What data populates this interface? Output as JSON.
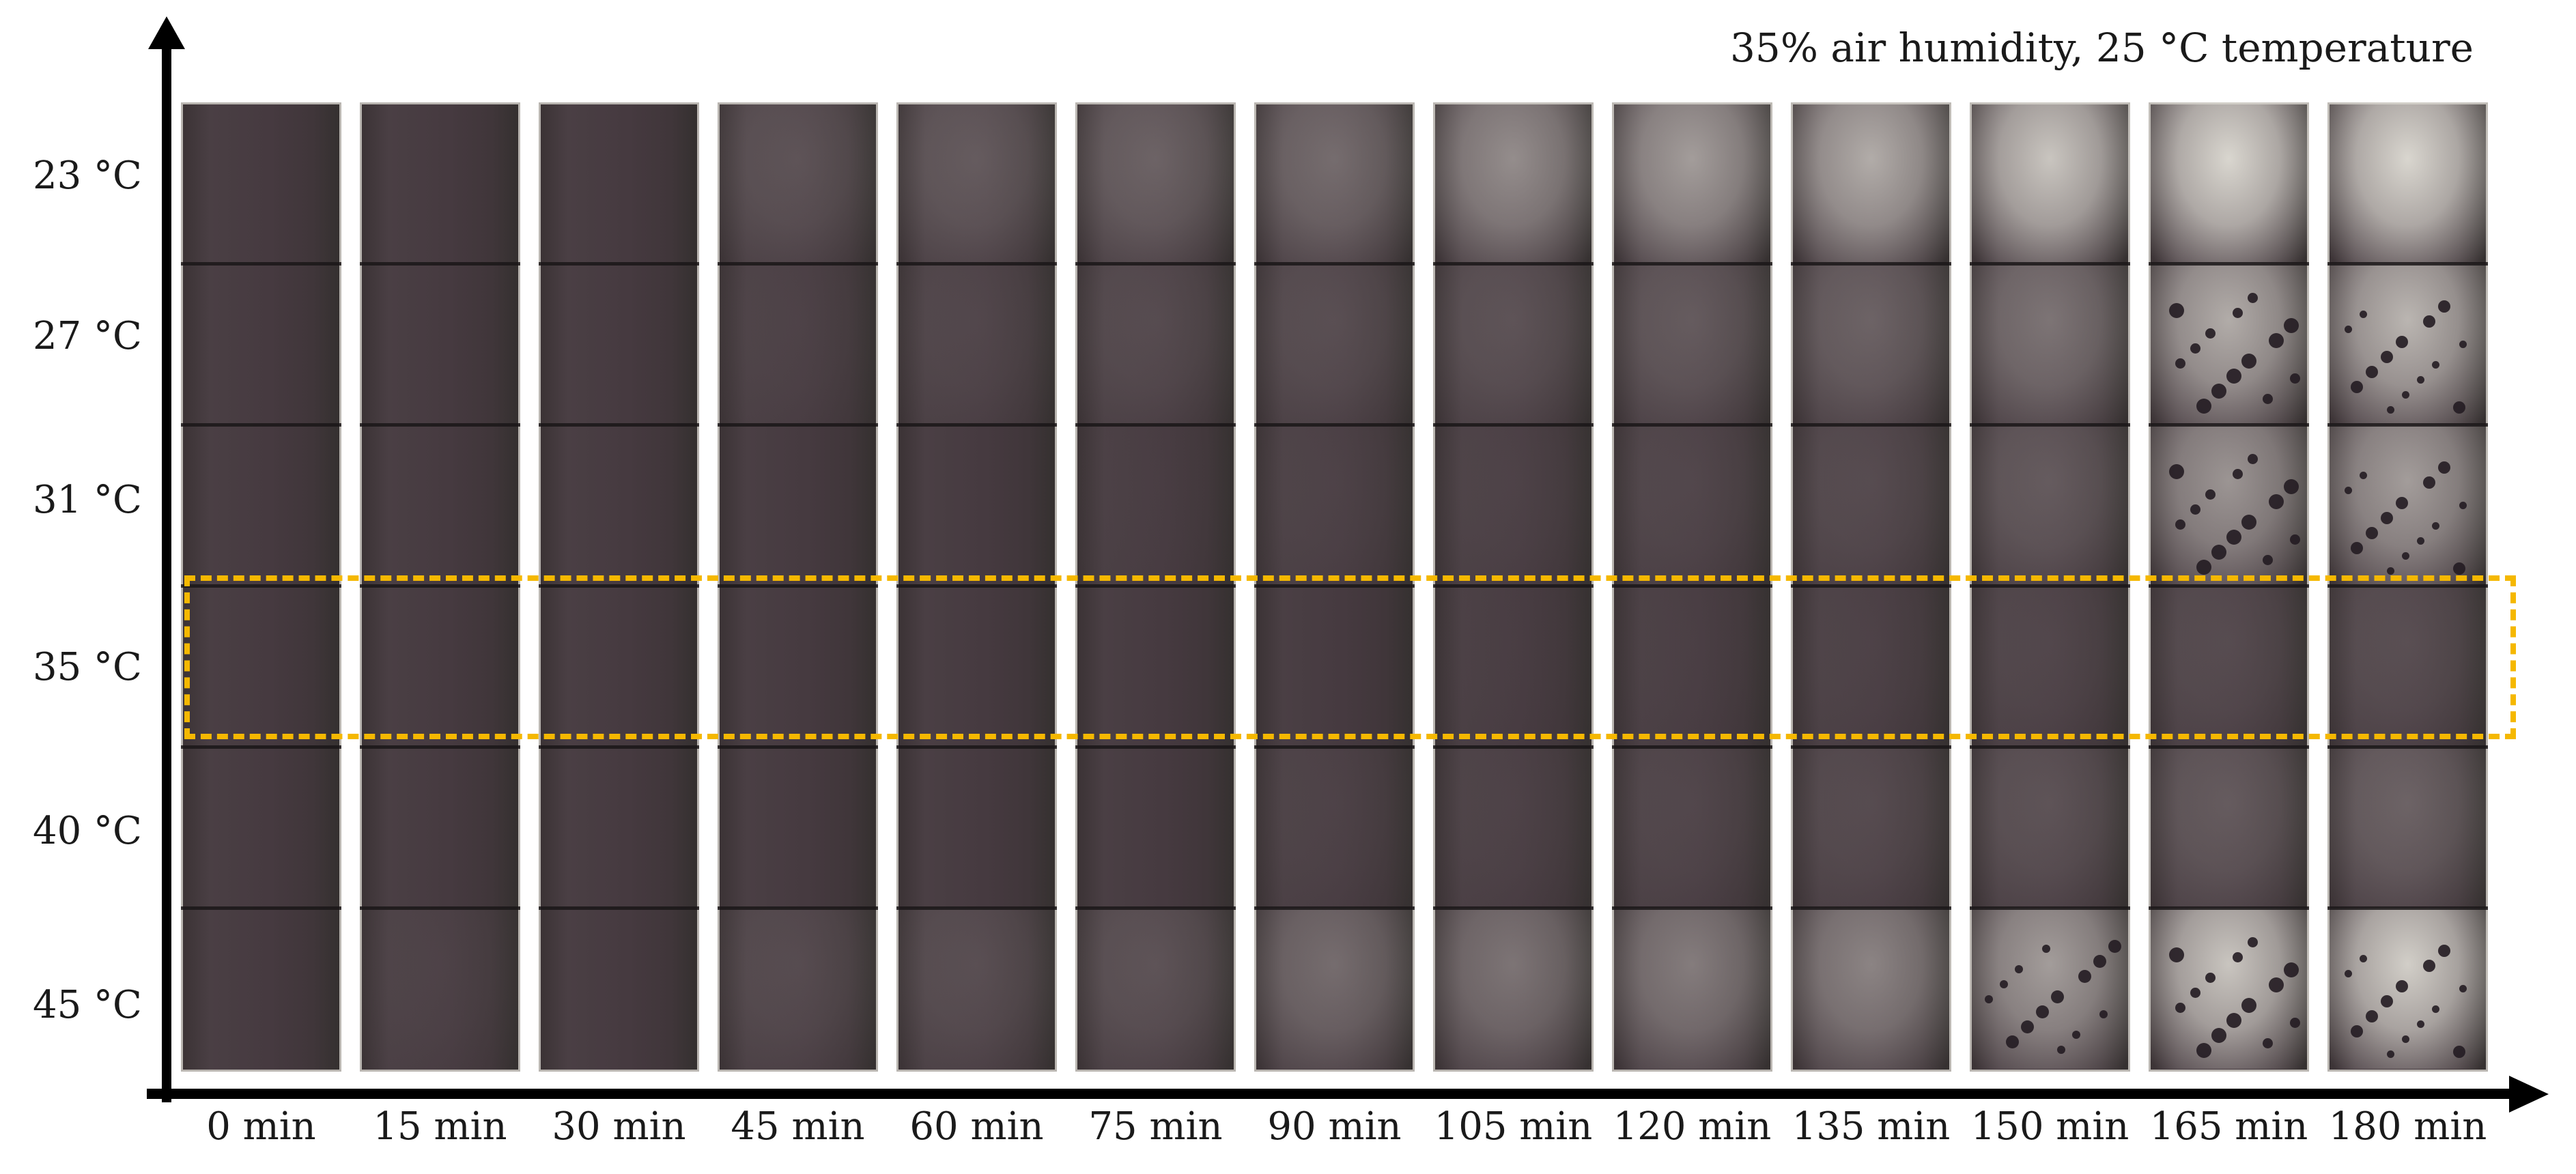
{
  "caption": "35% air humidity, 25 °C temperature",
  "row_labels": [
    "23 °C",
    "27 °C",
    "31 °C",
    "35 °C",
    "40 °C",
    "45 °C"
  ],
  "column_labels": [
    "0 min",
    "15 min",
    "30 min",
    "45 min",
    "60 min",
    "75 min",
    "90 min",
    "105 min",
    "120 min",
    "135 min",
    "150 min",
    "165 min",
    "180 min"
  ],
  "highlight": {
    "row": "35 °C",
    "color": "#f5b800"
  },
  "colors": {
    "film_dark": "#3f3539",
    "film_degraded": "#d9d6cf",
    "substrate_cream": "#e6e3da",
    "highlight_dash": "#f5b800"
  },
  "degradation_level": {
    "rows": [
      "23 °C",
      "27 °C",
      "31 °C",
      "35 °C",
      "40 °C",
      "45 °C"
    ],
    "values": [
      [
        0.0,
        0.0,
        0.0,
        0.15,
        0.2,
        0.25,
        0.3,
        0.5,
        0.6,
        0.7,
        0.85,
        1.0,
        1.0
      ],
      [
        0.0,
        0.0,
        0.0,
        0.05,
        0.08,
        0.1,
        0.12,
        0.15,
        0.2,
        0.25,
        0.35,
        0.7,
        0.75
      ],
      [
        0.0,
        0.0,
        0.0,
        0.0,
        0.0,
        0.02,
        0.05,
        0.05,
        0.08,
        0.1,
        0.2,
        0.55,
        0.6
      ],
      [
        0.0,
        0.0,
        0.0,
        0.0,
        0.0,
        0.0,
        0.0,
        0.02,
        0.03,
        0.05,
        0.08,
        0.1,
        0.12
      ],
      [
        0.0,
        0.0,
        0.0,
        0.0,
        0.0,
        0.0,
        0.05,
        0.05,
        0.08,
        0.1,
        0.15,
        0.2,
        0.25
      ],
      [
        0.0,
        0.05,
        0.0,
        0.1,
        0.12,
        0.15,
        0.3,
        0.35,
        0.4,
        0.45,
        0.6,
        0.85,
        0.9
      ]
    ]
  }
}
